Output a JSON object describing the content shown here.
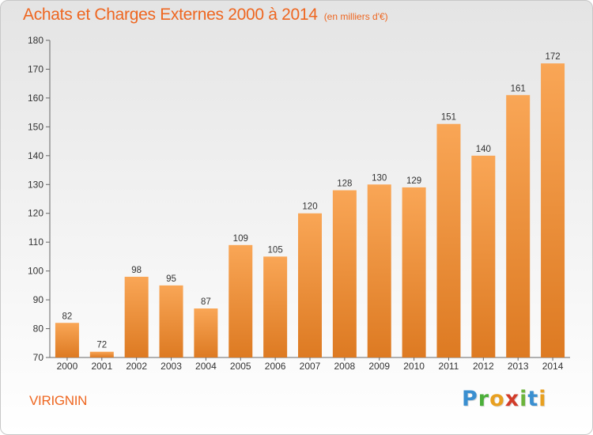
{
  "header": {
    "title": "Achats et Charges Externes 2000 à 2014",
    "subtitle": "(en milliers d'€)"
  },
  "footer": {
    "commune": "VIRIGNIN",
    "logo_letters": [
      "P",
      "r",
      "o",
      "x",
      "i",
      "t",
      "i"
    ]
  },
  "colors": {
    "accent": "#ee6620",
    "bar_light": "#f9a656",
    "bar_dark": "#dd7a22"
  },
  "chart_data": {
    "type": "bar",
    "title": "Achats et Charges Externes 2000 à 2014",
    "subtitle": "(en milliers d'€)",
    "categories": [
      "2000",
      "2001",
      "2002",
      "2003",
      "2004",
      "2005",
      "2006",
      "2007",
      "2008",
      "2009",
      "2010",
      "2011",
      "2012",
      "2013",
      "2014"
    ],
    "values": [
      82,
      72,
      98,
      95,
      87,
      109,
      105,
      120,
      128,
      130,
      129,
      151,
      140,
      161,
      172
    ],
    "ylim": [
      70,
      180
    ],
    "yticks": [
      70,
      80,
      90,
      100,
      110,
      120,
      130,
      140,
      150,
      160,
      170,
      180
    ],
    "grid": false,
    "legend": "none"
  }
}
